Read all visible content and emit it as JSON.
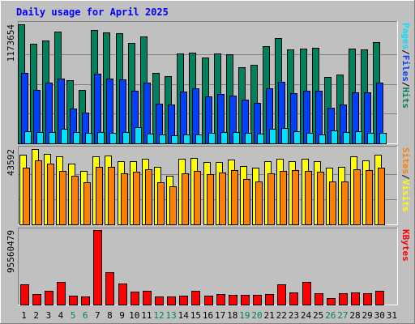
{
  "title": "Daily usage for April 2025",
  "colors": {
    "background": "#c0c0c0",
    "title": "#0000ff",
    "hits": "#00805c",
    "files": "#0040ff",
    "pages": "#00e0ff",
    "visits": "#ffff00",
    "sites": "#ff8000",
    "kbytes": "#ff0000",
    "weekend_day": "#00805c",
    "weekday": "#000000"
  },
  "chart_data": [
    {
      "type": "bar",
      "name": "hits-files-pages",
      "ymax_label": "1173654",
      "right_label": [
        "Pages",
        "/",
        "Files",
        "/",
        "Hits"
      ],
      "categories": [
        "1",
        "2",
        "3",
        "4",
        "5",
        "6",
        "7",
        "8",
        "9",
        "10",
        "11",
        "12",
        "13",
        "14",
        "15",
        "16",
        "17",
        "18",
        "19",
        "20",
        "21",
        "22",
        "23",
        "24",
        "25",
        "26",
        "27",
        "28",
        "29",
        "30",
        "31"
      ],
      "ylim": [
        0,
        1173654
      ],
      "series": [
        {
          "name": "Hits",
          "values": [
            1173654,
            985000,
            1010000,
            1105000,
            625000,
            530000,
            1115000,
            1090000,
            1085000,
            990000,
            1050000,
            695000,
            660000,
            885000,
            895000,
            850000,
            885000,
            875000,
            750000,
            775000,
            955000,
            1040000,
            930000,
            935000,
            940000,
            655000,
            680000,
            935000,
            930000,
            995000,
            0
          ]
        },
        {
          "name": "Files",
          "values": [
            695000,
            530000,
            595000,
            635000,
            345000,
            305000,
            685000,
            640000,
            630000,
            520000,
            600000,
            390000,
            385000,
            510000,
            540000,
            465000,
            485000,
            470000,
            430000,
            400000,
            545000,
            610000,
            495000,
            520000,
            515000,
            355000,
            380000,
            505000,
            500000,
            595000,
            0
          ]
        },
        {
          "name": "Pages",
          "values": [
            120000,
            110000,
            115000,
            140000,
            115000,
            100000,
            110000,
            105000,
            110000,
            160000,
            95000,
            85000,
            80000,
            85000,
            90000,
            100000,
            110000,
            110000,
            100000,
            95000,
            145000,
            150000,
            120000,
            105000,
            85000,
            125000,
            110000,
            120000,
            105000,
            100000,
            0
          ]
        }
      ]
    },
    {
      "type": "bar",
      "name": "visits-sites",
      "ymax_label": "43592",
      "right_label": [
        "Sites",
        "/",
        "Visits"
      ],
      "categories": [
        "1",
        "2",
        "3",
        "4",
        "5",
        "6",
        "7",
        "8",
        "9",
        "10",
        "11",
        "12",
        "13",
        "14",
        "15",
        "16",
        "17",
        "18",
        "19",
        "20",
        "21",
        "22",
        "23",
        "24",
        "25",
        "26",
        "27",
        "28",
        "29",
        "30",
        "31"
      ],
      "ylim": [
        0,
        43592
      ],
      "series": [
        {
          "name": "Visits",
          "values": [
            40300,
            43592,
            40800,
            39300,
            35300,
            30800,
            39600,
            39900,
            36400,
            36700,
            38100,
            33100,
            27900,
            38100,
            38600,
            36200,
            36300,
            37700,
            33800,
            32900,
            36400,
            38100,
            36600,
            38100,
            36400,
            32700,
            33100,
            39200,
            36900,
            40100,
            0
          ]
        },
        {
          "name": "Sites",
          "values": [
            32700,
            36800,
            35300,
            31100,
            28100,
            24300,
            33100,
            33200,
            29600,
            30300,
            32100,
            24500,
            22000,
            29500,
            31100,
            29200,
            29800,
            31300,
            26400,
            24800,
            29600,
            31100,
            31300,
            30800,
            30300,
            24900,
            24800,
            31900,
            31500,
            32900,
            0
          ]
        }
      ]
    },
    {
      "type": "bar",
      "name": "kbytes",
      "ymax_label": "95560479",
      "right_label": [
        "KBytes"
      ],
      "categories": [
        "1",
        "2",
        "3",
        "4",
        "5",
        "6",
        "7",
        "8",
        "9",
        "10",
        "11",
        "12",
        "13",
        "14",
        "15",
        "16",
        "17",
        "18",
        "19",
        "20",
        "21",
        "22",
        "23",
        "24",
        "25",
        "26",
        "27",
        "28",
        "29",
        "30",
        "31"
      ],
      "ylim": [
        0,
        95560479
      ],
      "series": [
        {
          "name": "KBytes",
          "values": [
            26000000,
            13500000,
            18000000,
            29000000,
            11000000,
            10000000,
            95560479,
            42000000,
            27000000,
            16500000,
            17500000,
            10500000,
            10000000,
            11500000,
            18000000,
            11000000,
            14000000,
            12500000,
            12000000,
            12500000,
            13000000,
            25500000,
            16000000,
            29000000,
            15000000,
            8000000,
            15000000,
            16000000,
            14500000,
            17500000,
            0
          ]
        }
      ]
    }
  ],
  "weekend_days": [
    "5",
    "6",
    "12",
    "13",
    "19",
    "20",
    "26",
    "27"
  ]
}
